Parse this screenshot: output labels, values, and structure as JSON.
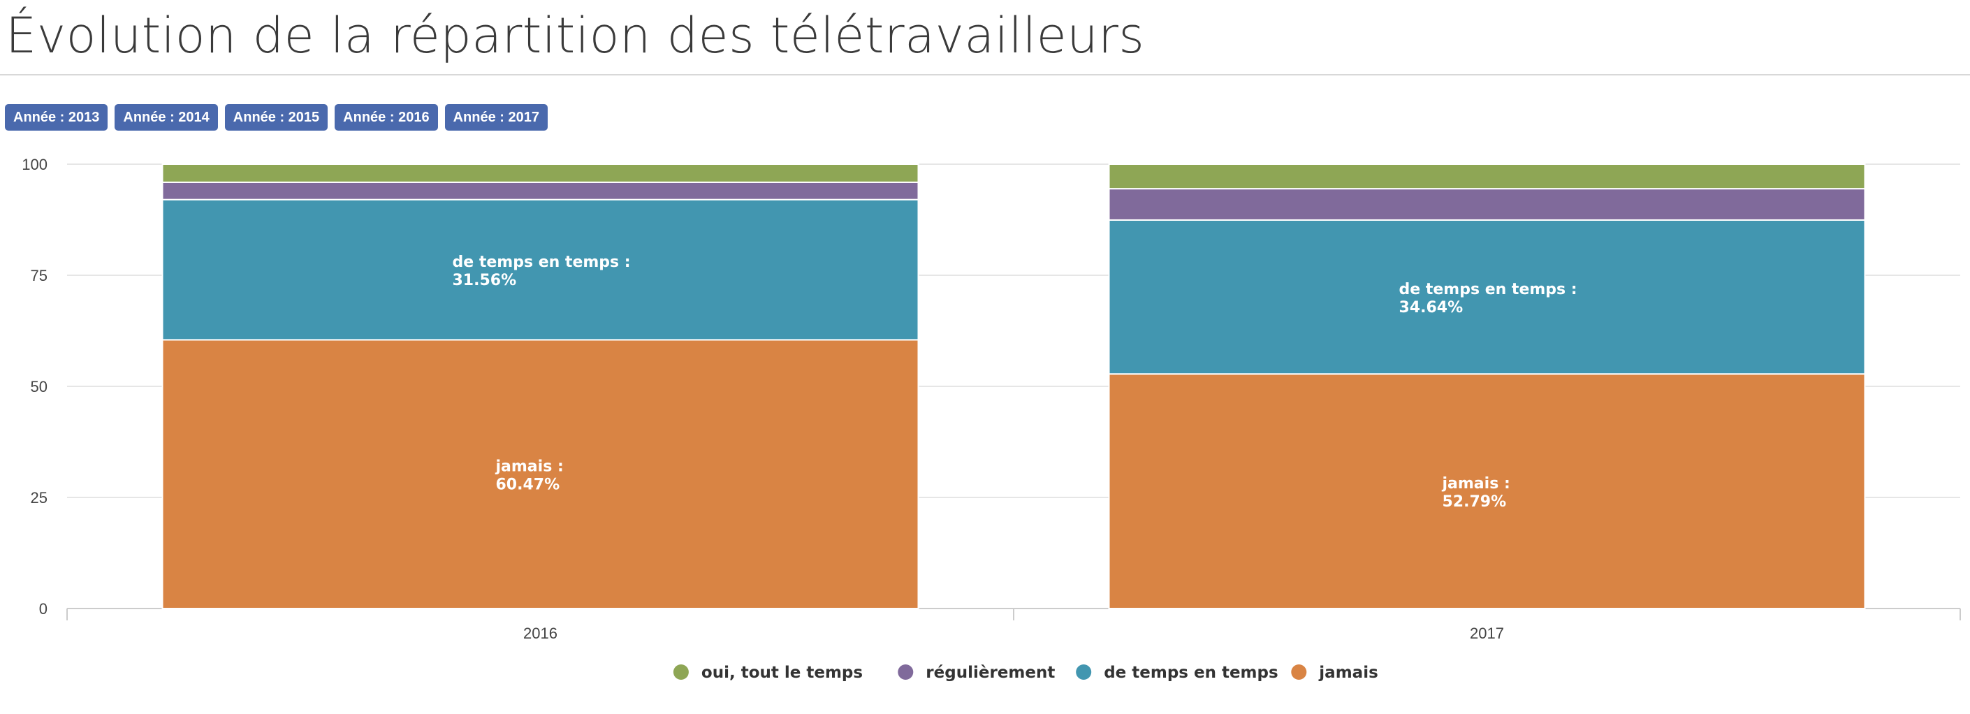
{
  "page": {
    "title": "Évolution de la répartition des télétravailleurs"
  },
  "filters": [
    {
      "label": "Année : 2013"
    },
    {
      "label": "Année : 2014"
    },
    {
      "label": "Année : 2015"
    },
    {
      "label": "Année : 2016"
    },
    {
      "label": "Année : 2017"
    }
  ],
  "chart_data": {
    "type": "bar",
    "stacked": true,
    "categories": [
      "2016",
      "2017"
    ],
    "ylim": [
      0,
      100
    ],
    "yticks": [
      0,
      25,
      50,
      75,
      100
    ],
    "grid": true,
    "legend_position": "bottom-center",
    "series": [
      {
        "name": "jamais",
        "values": [
          60.47,
          52.79
        ],
        "color": "#d98444",
        "labels": [
          "jamais :",
          "jamais :"
        ],
        "value_labels": [
          "60.47%",
          "52.79%"
        ]
      },
      {
        "name": "de temps en temps",
        "values": [
          31.56,
          34.64
        ],
        "color": "#4296b0",
        "labels": [
          "de temps en temps :",
          "de temps en temps :"
        ],
        "value_labels": [
          "31.56%",
          "34.64%"
        ]
      },
      {
        "name": "régulièrement",
        "values": [
          3.9,
          7.05
        ],
        "color": "#806a9b"
      },
      {
        "name": "oui, tout le temps",
        "values": [
          4.07,
          5.52
        ],
        "color": "#8ea655"
      }
    ],
    "legend_order": [
      "oui, tout le temps",
      "régulièrement",
      "de temps en temps",
      "jamais"
    ]
  }
}
